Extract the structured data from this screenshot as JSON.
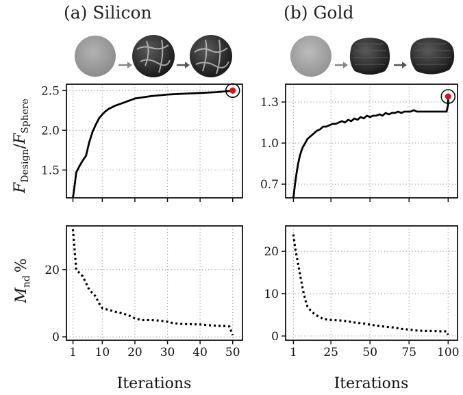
{
  "panels": {
    "a": {
      "title": "(a) Silicon"
    },
    "b": {
      "title": "(b) Gold"
    }
  },
  "ylabels": {
    "top": {
      "main": "F",
      "sub_num": "Design",
      "slash": "/",
      "main2": "F",
      "sub_den": "Sphere"
    },
    "bottom": {
      "main": "M",
      "sub": "nd",
      "unit": "%"
    }
  },
  "xlabel": "Iterations",
  "colors": {
    "line": "#000000",
    "marker": "#e01010",
    "grid": "#b0b0b0"
  },
  "chart_data": [
    {
      "type": "line",
      "panel": "a-top",
      "xlim": [
        -1,
        53
      ],
      "ylim": [
        1.15,
        2.58
      ],
      "xticks": [
        1,
        10,
        20,
        30,
        40,
        50
      ],
      "xticklabels": [],
      "yticks": [
        1.5,
        2.0,
        2.5
      ],
      "yticklabels": [
        "1.5",
        "2.0",
        "2.5"
      ],
      "grid": true,
      "series": [
        {
          "style": "solid",
          "x": [
            1,
            1.5,
            2,
            3,
            4,
            5,
            6,
            7,
            8,
            9,
            10,
            11,
            12,
            14,
            16,
            18,
            20,
            25,
            30,
            35,
            40,
            45,
            48,
            50
          ],
          "y": [
            1.15,
            1.3,
            1.47,
            1.55,
            1.62,
            1.68,
            1.85,
            1.98,
            2.07,
            2.15,
            2.2,
            2.24,
            2.27,
            2.31,
            2.34,
            2.37,
            2.4,
            2.43,
            2.45,
            2.46,
            2.47,
            2.48,
            2.49,
            2.5
          ]
        }
      ],
      "highlight": {
        "x": 50,
        "y": 2.5
      }
    },
    {
      "type": "line",
      "panel": "a-bottom",
      "xlim": [
        -1,
        53
      ],
      "ylim": [
        -1,
        33
      ],
      "xticks": [
        1,
        10,
        20,
        30,
        40,
        50
      ],
      "xticklabels": [
        "1",
        "10",
        "20",
        "30",
        "40",
        "50"
      ],
      "yticks": [
        0,
        20
      ],
      "yticklabels": [
        "0",
        "20"
      ],
      "grid": true,
      "series": [
        {
          "style": "dotted",
          "x": [
            1,
            2,
            3,
            4,
            5,
            6,
            7,
            8,
            9,
            10,
            12,
            14,
            16,
            18,
            20,
            22,
            25,
            28,
            30,
            32,
            35,
            40,
            45,
            48,
            49,
            50
          ],
          "y": [
            32,
            20,
            19,
            18,
            16,
            14,
            13,
            12,
            10,
            8.5,
            8,
            7.5,
            7,
            6.5,
            5.5,
            5,
            5,
            4.8,
            4.5,
            4,
            3.8,
            3.7,
            3.3,
            3.2,
            3.1,
            0.5
          ]
        }
      ]
    },
    {
      "type": "line",
      "panel": "b-top",
      "xlim": [
        -4,
        106
      ],
      "ylim": [
        0.6,
        1.43
      ],
      "xticks": [
        1,
        25,
        50,
        75,
        100
      ],
      "xticklabels": [],
      "yticks": [
        0.7,
        1.0,
        1.3
      ],
      "yticklabels": [
        "0.7",
        "1.0",
        "1.3"
      ],
      "grid": true,
      "series": [
        {
          "style": "solid",
          "x": [
            1,
            2,
            3,
            4,
            5,
            6,
            7,
            8,
            9,
            10,
            12,
            14,
            16,
            18,
            20,
            22,
            24,
            26,
            28,
            30,
            32,
            34,
            36,
            38,
            40,
            42,
            44,
            46,
            48,
            50,
            52,
            54,
            56,
            58,
            60,
            62,
            64,
            66,
            68,
            70,
            72,
            74,
            76,
            78,
            80,
            85,
            90,
            95,
            99,
            100,
            100
          ],
          "y": [
            0.6,
            0.7,
            0.78,
            0.85,
            0.9,
            0.94,
            0.97,
            0.99,
            1.01,
            1.03,
            1.05,
            1.07,
            1.09,
            1.1,
            1.12,
            1.12,
            1.13,
            1.14,
            1.14,
            1.15,
            1.16,
            1.15,
            1.17,
            1.16,
            1.18,
            1.17,
            1.19,
            1.18,
            1.2,
            1.19,
            1.2,
            1.2,
            1.21,
            1.2,
            1.22,
            1.21,
            1.22,
            1.22,
            1.23,
            1.22,
            1.23,
            1.23,
            1.23,
            1.24,
            1.23,
            1.23,
            1.23,
            1.23,
            1.23,
            1.28,
            1.34
          ]
        }
      ],
      "highlight": {
        "x": 100,
        "y": 1.34
      }
    },
    {
      "type": "line",
      "panel": "b-bottom",
      "xlim": [
        -4,
        106
      ],
      "ylim": [
        -1,
        26
      ],
      "xticks": [
        1,
        25,
        50,
        75,
        100
      ],
      "xticklabels": [
        "1",
        "25",
        "50",
        "75",
        "100"
      ],
      "yticks": [
        0,
        10,
        20
      ],
      "yticklabels": [
        "0",
        "10",
        "20"
      ],
      "grid": true,
      "series": [
        {
          "style": "dotted",
          "x": [
            1,
            2,
            3,
            4,
            5,
            6,
            7,
            8,
            9,
            10,
            12,
            15,
            18,
            20,
            25,
            30,
            35,
            40,
            45,
            50,
            55,
            60,
            65,
            70,
            75,
            80,
            85,
            90,
            95,
            99,
            100
          ],
          "y": [
            24,
            21,
            19,
            17,
            15,
            13,
            11,
            9.5,
            8,
            7,
            6,
            5,
            4.5,
            4,
            3.8,
            3.7,
            3.5,
            3.2,
            3,
            2.7,
            2.4,
            2.2,
            2,
            1.7,
            1.5,
            1.3,
            1.2,
            1.2,
            1.1,
            1.1,
            0.3
          ]
        }
      ]
    }
  ],
  "insets": {
    "a": [
      {
        "name": "sphere",
        "tone": "#9a9a9a"
      },
      {
        "name": "intermediate-design",
        "tone": "#2e2e2e"
      },
      {
        "name": "final-design",
        "tone": "#262626"
      }
    ],
    "b": [
      {
        "name": "sphere",
        "tone": "#a3a3a3"
      },
      {
        "name": "intermediate-design",
        "tone": "#3b3b3b"
      },
      {
        "name": "final-design",
        "tone": "#333333"
      }
    ]
  }
}
